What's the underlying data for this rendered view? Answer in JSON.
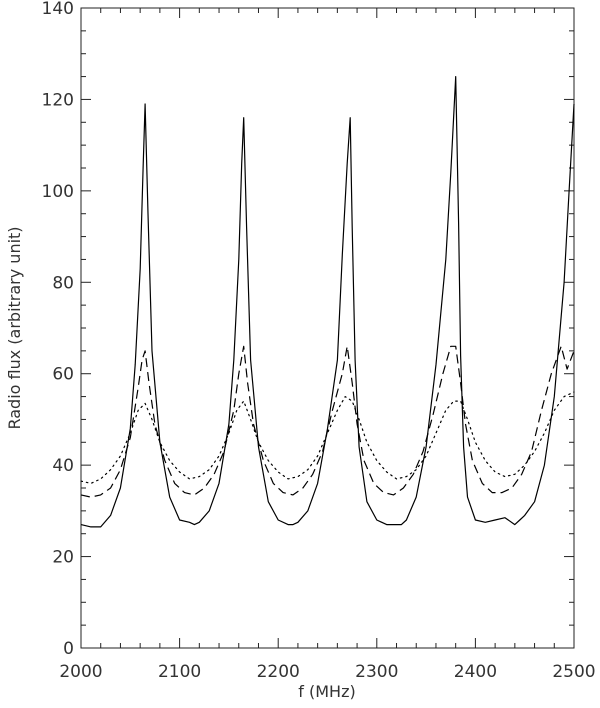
{
  "chart_data": {
    "type": "line",
    "title": "",
    "xlabel": "f (MHz)",
    "ylabel": "Radio flux (arbitrary unit)",
    "xlim": [
      2000,
      2500
    ],
    "ylim": [
      0,
      140
    ],
    "xticks": [
      2000,
      2100,
      2200,
      2300,
      2400,
      2500
    ],
    "yticks": [
      0,
      20,
      40,
      60,
      80,
      100,
      120,
      140
    ],
    "grid": false,
    "legend": "none",
    "series": [
      {
        "style": "solid",
        "color": "#000000",
        "x": [
          2000,
          2010,
          2020,
          2030,
          2040,
          2050,
          2055,
          2060,
          2063,
          2065,
          2068,
          2072,
          2080,
          2090,
          2100,
          2110,
          2115,
          2120,
          2130,
          2140,
          2150,
          2155,
          2160,
          2163,
          2165,
          2168,
          2172,
          2180,
          2190,
          2200,
          2210,
          2215,
          2220,
          2230,
          2240,
          2250,
          2260,
          2265,
          2270,
          2273,
          2275,
          2278,
          2282,
          2290,
          2300,
          2310,
          2320,
          2325,
          2330,
          2340,
          2350,
          2360,
          2370,
          2375,
          2380,
          2383,
          2385,
          2388,
          2392,
          2400,
          2410,
          2420,
          2430,
          2440,
          2445,
          2450,
          2460,
          2470,
          2480,
          2490,
          2495,
          2500
        ],
        "y": [
          27,
          26.5,
          26.5,
          29,
          35,
          48,
          62,
          83,
          105,
          119,
          95,
          65,
          45,
          33,
          28,
          27.5,
          27,
          27.5,
          30,
          36,
          49,
          63,
          85,
          106,
          116,
          92,
          63,
          44,
          32,
          28,
          27,
          27,
          27.5,
          30,
          36,
          48,
          63,
          86,
          106,
          116,
          92,
          63,
          44,
          32,
          28,
          27,
          27,
          27,
          28,
          33,
          44,
          62,
          85,
          104,
          125,
          93,
          64,
          44,
          33,
          28,
          27.5,
          28,
          28.5,
          27,
          28,
          29,
          32,
          40,
          55,
          80,
          100,
          119
        ]
      },
      {
        "style": "dashed",
        "color": "#000000",
        "x": [
          2000,
          2010,
          2020,
          2030,
          2040,
          2050,
          2058,
          2062,
          2065,
          2069,
          2075,
          2085,
          2095,
          2105,
          2115,
          2125,
          2135,
          2145,
          2155,
          2160,
          2165,
          2169,
          2175,
          2185,
          2195,
          2205,
          2215,
          2225,
          2235,
          2245,
          2255,
          2265,
          2270,
          2275,
          2280,
          2287,
          2297,
          2307,
          2317,
          2327,
          2337,
          2347,
          2357,
          2367,
          2375,
          2380,
          2385,
          2390,
          2397,
          2407,
          2417,
          2427,
          2437,
          2447,
          2457,
          2467,
          2477,
          2487,
          2493,
          2500
        ],
        "y": [
          33.5,
          33,
          33.5,
          35,
          39,
          46,
          57,
          63,
          65,
          58,
          49,
          41,
          36,
          34,
          33.5,
          35,
          38,
          43,
          52,
          60,
          66,
          58,
          49,
          41,
          36,
          34,
          33.5,
          35,
          38,
          43,
          52,
          60,
          66,
          58,
          49,
          41,
          36,
          34,
          33.5,
          35,
          38,
          43,
          51,
          60,
          66,
          66,
          58,
          49,
          41,
          36,
          34,
          34,
          35,
          38,
          43,
          52,
          60,
          66,
          61,
          65
        ]
      },
      {
        "style": "dotted",
        "color": "#000000",
        "x": [
          2000,
          2010,
          2020,
          2030,
          2040,
          2050,
          2058,
          2065,
          2072,
          2080,
          2090,
          2100,
          2110,
          2120,
          2130,
          2140,
          2150,
          2158,
          2165,
          2172,
          2180,
          2190,
          2200,
          2210,
          2220,
          2230,
          2240,
          2250,
          2260,
          2268,
          2275,
          2282,
          2290,
          2300,
          2310,
          2320,
          2330,
          2340,
          2350,
          2360,
          2370,
          2378,
          2385,
          2392,
          2400,
          2410,
          2420,
          2430,
          2440,
          2450,
          2460,
          2470,
          2480,
          2490,
          2500
        ],
        "y": [
          36.5,
          36,
          37,
          39,
          42,
          47,
          52,
          53.5,
          50,
          45,
          41,
          38.5,
          37,
          37.5,
          39,
          42,
          47,
          52,
          54,
          50,
          45,
          41,
          38.5,
          37,
          37.5,
          39,
          42,
          47,
          52,
          55,
          54,
          50,
          45,
          41,
          38.5,
          37,
          37.5,
          39,
          42,
          47,
          52,
          54,
          54,
          50,
          45,
          41,
          38.5,
          37.5,
          38,
          40,
          43,
          47,
          52,
          55,
          56
        ]
      }
    ]
  }
}
